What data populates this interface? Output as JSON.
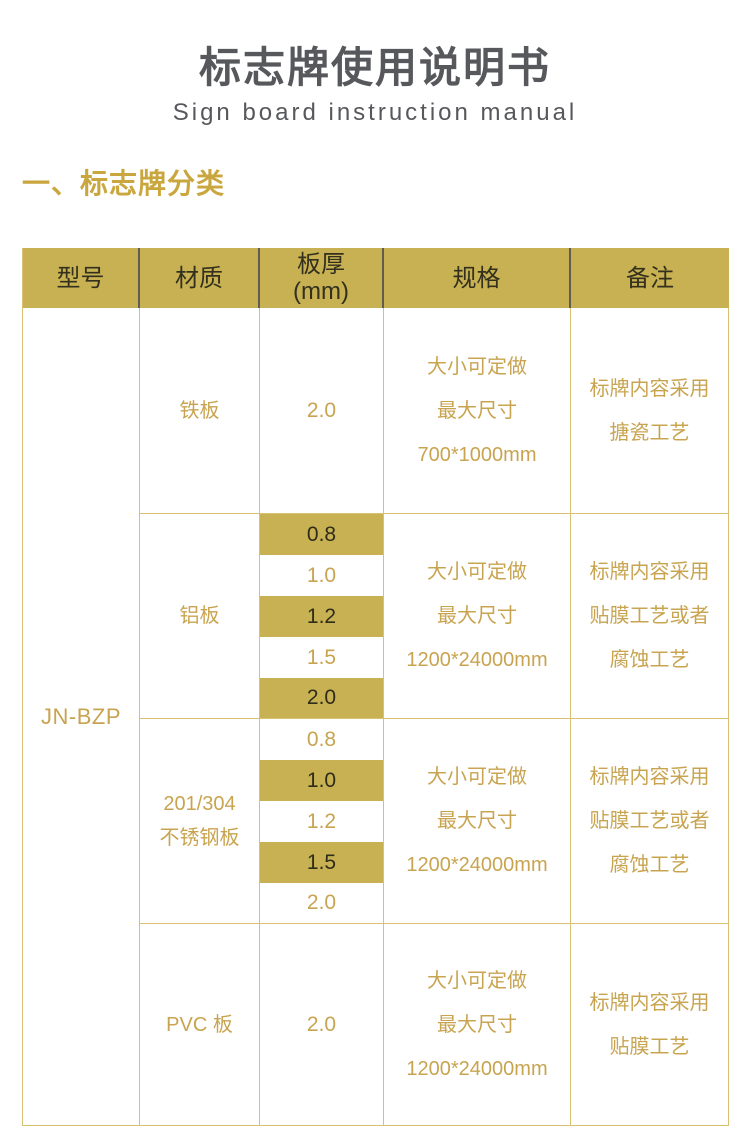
{
  "page": {
    "title": "标志牌使用说明书",
    "subtitle": "Sign board instruction manual",
    "section_heading": "一、标志牌分类"
  },
  "colors": {
    "gold_band": "#c7b152",
    "gold_text": "#c8a450",
    "dark_text": "#2f2c1a",
    "border": "#d9c173",
    "title_text": "#57585c",
    "heading_text": "#c9a63e"
  },
  "table": {
    "headers": {
      "model": "型号",
      "material": "材质",
      "thickness_line1": "板厚",
      "thickness_line2": "(mm)",
      "spec": "规格",
      "note": "备注"
    },
    "model": "JN-BZP",
    "sections": [
      {
        "material_lines": [
          "铁板"
        ],
        "thickness": [
          {
            "value": "2.0",
            "highlight": false
          }
        ],
        "spec_lines": [
          "大小可定做",
          "最大尺寸",
          "700*1000mm"
        ],
        "note_lines": [
          "标牌内容采用",
          "搪瓷工艺"
        ]
      },
      {
        "material_lines": [
          "铝板"
        ],
        "thickness": [
          {
            "value": "0.8",
            "highlight": true
          },
          {
            "value": "1.0",
            "highlight": false
          },
          {
            "value": "1.2",
            "highlight": true
          },
          {
            "value": "1.5",
            "highlight": false
          },
          {
            "value": "2.0",
            "highlight": true
          }
        ],
        "spec_lines": [
          "大小可定做",
          "最大尺寸",
          "1200*24000mm"
        ],
        "note_lines": [
          "标牌内容采用",
          "贴膜工艺或者",
          "腐蚀工艺"
        ]
      },
      {
        "material_lines": [
          "201/304",
          "不锈钢板"
        ],
        "thickness": [
          {
            "value": "0.8",
            "highlight": false
          },
          {
            "value": "1.0",
            "highlight": true
          },
          {
            "value": "1.2",
            "highlight": false
          },
          {
            "value": "1.5",
            "highlight": true
          },
          {
            "value": "2.0",
            "highlight": false
          }
        ],
        "spec_lines": [
          "大小可定做",
          "最大尺寸",
          "1200*24000mm"
        ],
        "note_lines": [
          "标牌内容采用",
          "贴膜工艺或者",
          "腐蚀工艺"
        ]
      },
      {
        "material_lines": [
          "PVC 板"
        ],
        "thickness": [
          {
            "value": "2.0",
            "highlight": false
          }
        ],
        "spec_lines": [
          "大小可定做",
          "最大尺寸",
          "1200*24000mm"
        ],
        "note_lines": [
          "标牌内容采用",
          "贴膜工艺"
        ]
      }
    ]
  }
}
